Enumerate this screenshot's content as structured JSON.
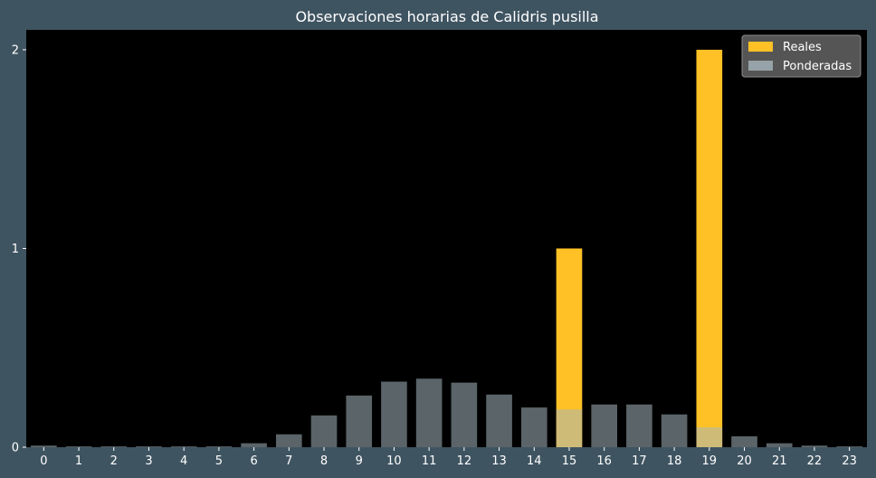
{
  "chart_data": {
    "type": "bar",
    "title": "Observaciones horarias de Calidris pusilla",
    "xlabel": "",
    "ylabel": "",
    "categories": [
      "0",
      "1",
      "2",
      "3",
      "4",
      "5",
      "6",
      "7",
      "8",
      "9",
      "10",
      "11",
      "12",
      "13",
      "14",
      "15",
      "16",
      "17",
      "18",
      "19",
      "20",
      "21",
      "22",
      "23"
    ],
    "yticks": [
      "0",
      "1",
      "2"
    ],
    "ylim": [
      0,
      2.1
    ],
    "grid": false,
    "legend_position": "top-right",
    "series": [
      {
        "name": "Reales",
        "color": "#ffc125",
        "values": [
          0,
          0,
          0,
          0,
          0,
          0,
          0,
          0,
          0,
          0,
          0,
          0,
          0,
          0,
          0,
          1,
          0,
          0,
          0,
          2,
          0,
          0,
          0,
          0
        ]
      },
      {
        "name": "Ponderadas",
        "color": "#a6b7bd",
        "opacity": 0.55,
        "values": [
          0.008,
          0.004,
          0.004,
          0.004,
          0.004,
          0.004,
          0.02,
          0.065,
          0.16,
          0.26,
          0.33,
          0.345,
          0.325,
          0.265,
          0.2,
          0.19,
          0.215,
          0.215,
          0.165,
          0.1,
          0.055,
          0.02,
          0.008,
          0.004
        ]
      }
    ],
    "colors": {
      "figure_background": "#3f5461",
      "plot_background": "#000000",
      "legend_background": "#5a5a5a"
    }
  }
}
